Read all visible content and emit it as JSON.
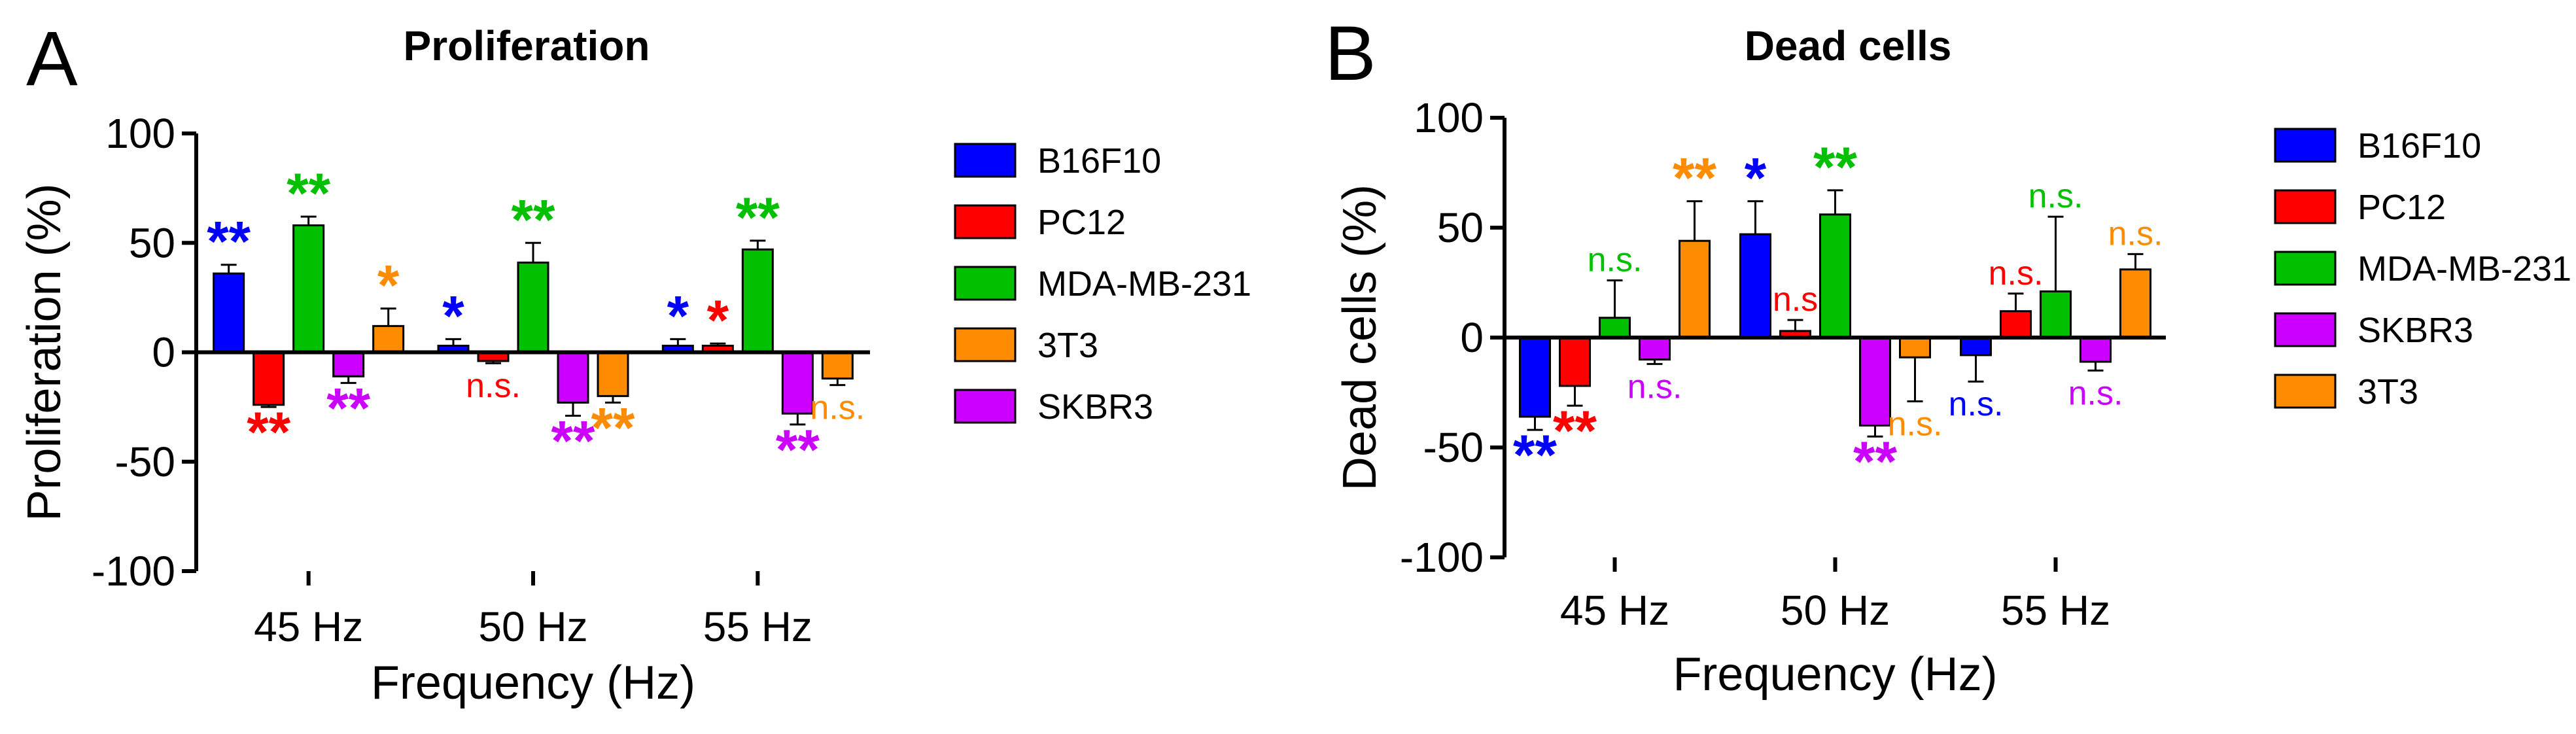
{
  "chart_data": [
    {
      "type": "bar",
      "panel_label": "A",
      "title": "Proliferation",
      "xlabel": "Frequency (Hz)",
      "ylabel": "Proliferation (%)",
      "ylim": [
        -100,
        100
      ],
      "yticks": [
        100,
        50,
        0,
        -50,
        -100
      ],
      "categories": [
        "45 Hz",
        "50 Hz",
        "55 Hz"
      ],
      "legend_position": "right",
      "series": [
        {
          "name": "B16F10",
          "color": "#0000ff",
          "values": [
            36,
            3,
            3
          ],
          "errors": [
            4,
            3,
            3
          ],
          "annotations": [
            "**",
            "*",
            "*"
          ]
        },
        {
          "name": "PC12",
          "color": "#ff0000",
          "values": [
            -24,
            -4,
            3
          ],
          "errors": [
            1,
            1,
            1
          ],
          "annotations": [
            "**",
            "n.s.",
            "*"
          ]
        },
        {
          "name": "MDA-MB-231",
          "color": "#00c000",
          "values": [
            58,
            41,
            47
          ],
          "errors": [
            4,
            9,
            4
          ],
          "annotations": [
            "**",
            "**",
            "**"
          ]
        },
        {
          "name": "SKBR3",
          "color": "#cc00ff",
          "values": [
            -11,
            -23,
            -28
          ],
          "errors": [
            3,
            6,
            5
          ],
          "annotations": [
            "**",
            "**",
            "**"
          ]
        },
        {
          "name": "3T3",
          "color": "#ff8c00",
          "values": [
            12,
            -20,
            -12
          ],
          "errors": [
            8,
            3,
            3
          ],
          "annotations": [
            "*",
            "**",
            "n.s."
          ]
        }
      ],
      "legend_order": [
        "B16F10",
        "PC12",
        "MDA-MB-231",
        "3T3",
        "SKBR3"
      ]
    },
    {
      "type": "bar",
      "panel_label": "B",
      "title": "Dead cells",
      "xlabel": "Frequency (Hz)",
      "ylabel": "Dead cells (%)",
      "ylim": [
        -100,
        100
      ],
      "yticks": [
        100,
        50,
        0,
        -50,
        -100
      ],
      "categories": [
        "45 Hz",
        "50 Hz",
        "55 Hz"
      ],
      "legend_position": "right",
      "series": [
        {
          "name": "B16F10",
          "color": "#0000ff",
          "values": [
            -36,
            47,
            -8
          ],
          "errors": [
            6,
            15,
            12
          ],
          "annotations": [
            "**",
            "*",
            "n.s."
          ]
        },
        {
          "name": "PC12",
          "color": "#ff0000",
          "values": [
            -22,
            3,
            12
          ],
          "errors": [
            9,
            5,
            8
          ],
          "annotations": [
            "**",
            "n.s",
            "n.s."
          ]
        },
        {
          "name": "MDA-MB-231",
          "color": "#00c000",
          "values": [
            9,
            56,
            21
          ],
          "errors": [
            17,
            11,
            34
          ],
          "annotations": [
            "n.s.",
            "**",
            "n.s."
          ]
        },
        {
          "name": "SKBR3",
          "color": "#cc00ff",
          "values": [
            -10,
            -40,
            -11
          ],
          "errors": [
            2,
            5,
            4
          ],
          "annotations": [
            "n.s.",
            "**",
            "n.s."
          ]
        },
        {
          "name": "3T3",
          "color": "#ff8c00",
          "values": [
            44,
            -9,
            31
          ],
          "errors": [
            18,
            20,
            7
          ],
          "annotations": [
            "**",
            "n.s.",
            "n.s."
          ]
        }
      ],
      "legend_order": [
        "B16F10",
        "PC12",
        "MDA-MB-231",
        "SKBR3",
        "3T3"
      ]
    }
  ]
}
